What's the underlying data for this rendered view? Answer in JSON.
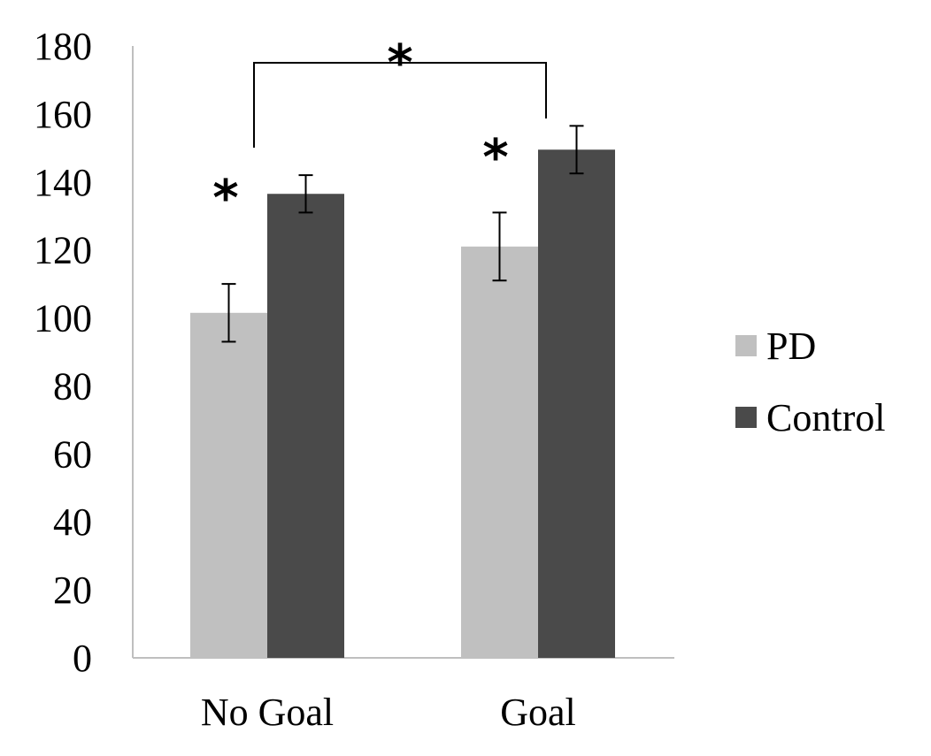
{
  "chart_data": {
    "type": "bar",
    "title": "",
    "xlabel": "",
    "ylabel": "",
    "categories": [
      "No Goal",
      "Goal"
    ],
    "series": [
      {
        "name": "PD",
        "color": "#c0c0c0",
        "values": [
          101.5,
          121
        ],
        "errors": [
          8.5,
          10
        ]
      },
      {
        "name": "Control",
        "color": "#4a4a4a",
        "values": [
          136.5,
          149.5
        ],
        "errors": [
          5.5,
          7
        ]
      }
    ],
    "ylim": [
      0,
      180
    ],
    "yticks": [
      0,
      20,
      40,
      60,
      80,
      100,
      120,
      140,
      160,
      180
    ],
    "grid": false,
    "legend_position": "right",
    "annotations": {
      "within_group_star": [
        "*",
        "*"
      ],
      "between_group_star": "*"
    }
  }
}
